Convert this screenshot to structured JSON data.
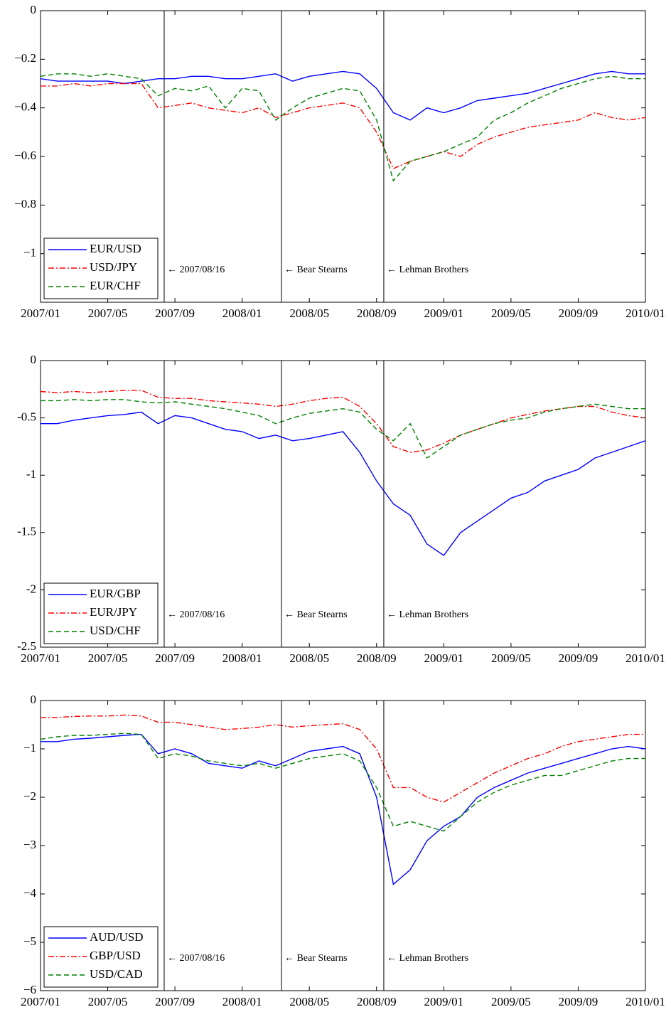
{
  "chart_data": [
    {
      "type": "line",
      "x": [
        "2007/01",
        "2007/02",
        "2007/03",
        "2007/04",
        "2007/05",
        "2007/06",
        "2007/07",
        "2007/08",
        "2007/09",
        "2007/10",
        "2007/11",
        "2007/12",
        "2008/01",
        "2008/02",
        "2008/03",
        "2008/04",
        "2008/05",
        "2008/06",
        "2008/07",
        "2008/08",
        "2008/09",
        "2008/10",
        "2008/11",
        "2008/12",
        "2009/01",
        "2009/02",
        "2009/03",
        "2009/04",
        "2009/05",
        "2009/06",
        "2009/07",
        "2009/08",
        "2009/09",
        "2009/10",
        "2009/11",
        "2009/12",
        "2010/01"
      ],
      "xticks": [
        "2007/01",
        "2007/05",
        "2007/09",
        "2008/01",
        "2008/05",
        "2008/09",
        "2009/01",
        "2009/05",
        "2009/09",
        "2010/01"
      ],
      "ylim": [
        -1.2,
        0
      ],
      "yticks": [
        {
          "value": -1,
          "label": "−1"
        },
        {
          "value": -0.8,
          "label": "−0.8"
        },
        {
          "value": -0.6,
          "label": "−0.6"
        },
        {
          "value": -0.4,
          "label": "−0.4"
        },
        {
          "value": -0.2,
          "label": "−0.2"
        },
        0
      ],
      "legend": "lower left",
      "annotations": [
        "← 2007/08/16",
        "← Bear Stearns",
        "← Lehman Brothers"
      ],
      "series": [
        {
          "name": "EUR/USD",
          "color": "#0000ff",
          "dash": "solid",
          "values": [
            -0.28,
            -0.29,
            -0.29,
            -0.29,
            -0.29,
            -0.3,
            -0.29,
            -0.28,
            -0.28,
            -0.27,
            -0.27,
            -0.28,
            -0.28,
            -0.27,
            -0.26,
            -0.29,
            -0.27,
            -0.26,
            -0.25,
            -0.26,
            -0.32,
            -0.42,
            -0.45,
            -0.4,
            -0.42,
            -0.4,
            -0.37,
            -0.36,
            -0.35,
            -0.34,
            -0.32,
            -0.3,
            -0.28,
            -0.26,
            -0.25,
            -0.26,
            -0.26
          ]
        },
        {
          "name": "USD/JPY",
          "color": "#ff0000",
          "dash": "dashdot",
          "values": [
            -0.31,
            -0.31,
            -0.3,
            -0.31,
            -0.3,
            -0.3,
            -0.3,
            -0.4,
            -0.39,
            -0.38,
            -0.4,
            -0.41,
            -0.42,
            -0.4,
            -0.44,
            -0.42,
            -0.4,
            -0.39,
            -0.38,
            -0.4,
            -0.5,
            -0.65,
            -0.62,
            -0.6,
            -0.58,
            -0.6,
            -0.55,
            -0.52,
            -0.5,
            -0.48,
            -0.47,
            -0.46,
            -0.45,
            -0.42,
            -0.44,
            -0.45,
            -0.44
          ]
        },
        {
          "name": "EUR/CHF",
          "color": "#008000",
          "dash": "dashed",
          "values": [
            -0.27,
            -0.26,
            -0.26,
            -0.27,
            -0.26,
            -0.27,
            -0.28,
            -0.35,
            -0.32,
            -0.33,
            -0.31,
            -0.4,
            -0.32,
            -0.33,
            -0.45,
            -0.4,
            -0.36,
            -0.34,
            -0.32,
            -0.33,
            -0.45,
            -0.7,
            -0.62,
            -0.6,
            -0.58,
            -0.55,
            -0.52,
            -0.45,
            -0.42,
            -0.38,
            -0.35,
            -0.32,
            -0.3,
            -0.28,
            -0.27,
            -0.28,
            -0.28
          ]
        }
      ]
    },
    {
      "type": "line",
      "x": [
        "2007/01",
        "2007/02",
        "2007/03",
        "2007/04",
        "2007/05",
        "2007/06",
        "2007/07",
        "2007/08",
        "2007/09",
        "2007/10",
        "2007/11",
        "2007/12",
        "2008/01",
        "2008/02",
        "2008/03",
        "2008/04",
        "2008/05",
        "2008/06",
        "2008/07",
        "2008/08",
        "2008/09",
        "2008/10",
        "2008/11",
        "2008/12",
        "2009/01",
        "2009/02",
        "2009/03",
        "2009/04",
        "2009/05",
        "2009/06",
        "2009/07",
        "2009/08",
        "2009/09",
        "2009/10",
        "2009/11",
        "2009/12",
        "2010/01"
      ],
      "xticks": [
        "2007/01",
        "2007/05",
        "2007/09",
        "2008/01",
        "2008/05",
        "2008/09",
        "2009/01",
        "2009/05",
        "2009/09",
        "2010/01"
      ],
      "ylim": [
        -2.5,
        0
      ],
      "yticks": [
        -2.5,
        -2,
        -1.5,
        -1,
        -0.5,
        0
      ],
      "legend": "lower left",
      "annotations": [
        "← 2007/08/16",
        "← Bear Stearns",
        "← Lehman Brothers"
      ],
      "series": [
        {
          "name": "EUR/GBP",
          "color": "#0000ff",
          "dash": "solid",
          "values": [
            -0.55,
            -0.55,
            -0.52,
            -0.5,
            -0.48,
            -0.47,
            -0.45,
            -0.55,
            -0.48,
            -0.5,
            -0.55,
            -0.6,
            -0.62,
            -0.68,
            -0.65,
            -0.7,
            -0.68,
            -0.65,
            -0.62,
            -0.8,
            -1.05,
            -1.25,
            -1.35,
            -1.6,
            -1.7,
            -1.5,
            -1.4,
            -1.3,
            -1.2,
            -1.15,
            -1.05,
            -1.0,
            -0.95,
            -0.85,
            -0.8,
            -0.75,
            -0.7
          ]
        },
        {
          "name": "EUR/JPY",
          "color": "#ff0000",
          "dash": "dashdot",
          "values": [
            -0.27,
            -0.28,
            -0.27,
            -0.28,
            -0.27,
            -0.26,
            -0.26,
            -0.32,
            -0.33,
            -0.33,
            -0.35,
            -0.36,
            -0.37,
            -0.38,
            -0.4,
            -0.38,
            -0.35,
            -0.33,
            -0.32,
            -0.4,
            -0.55,
            -0.75,
            -0.8,
            -0.78,
            -0.72,
            -0.65,
            -0.6,
            -0.55,
            -0.5,
            -0.47,
            -0.44,
            -0.42,
            -0.4,
            -0.4,
            -0.45,
            -0.48,
            -0.5
          ]
        },
        {
          "name": "USD/CHF",
          "color": "#008000",
          "dash": "dashed",
          "values": [
            -0.35,
            -0.35,
            -0.34,
            -0.35,
            -0.34,
            -0.34,
            -0.36,
            -0.37,
            -0.36,
            -0.38,
            -0.4,
            -0.42,
            -0.45,
            -0.48,
            -0.55,
            -0.5,
            -0.46,
            -0.44,
            -0.42,
            -0.45,
            -0.6,
            -0.7,
            -0.55,
            -0.85,
            -0.75,
            -0.65,
            -0.6,
            -0.55,
            -0.52,
            -0.5,
            -0.45,
            -0.42,
            -0.4,
            -0.38,
            -0.4,
            -0.42,
            -0.42
          ]
        }
      ]
    },
    {
      "type": "line",
      "x": [
        "2007/01",
        "2007/02",
        "2007/03",
        "2007/04",
        "2007/05",
        "2007/06",
        "2007/07",
        "2007/08",
        "2007/09",
        "2007/10",
        "2007/11",
        "2007/12",
        "2008/01",
        "2008/02",
        "2008/03",
        "2008/04",
        "2008/05",
        "2008/06",
        "2008/07",
        "2008/08",
        "2008/09",
        "2008/10",
        "2008/11",
        "2008/12",
        "2009/01",
        "2009/02",
        "2009/03",
        "2009/04",
        "2009/05",
        "2009/06",
        "2009/07",
        "2009/08",
        "2009/09",
        "2009/10",
        "2009/11",
        "2009/12",
        "2010/01"
      ],
      "xticks": [
        "2007/01",
        "2007/05",
        "2007/09",
        "2008/01",
        "2008/05",
        "2008/09",
        "2009/01",
        "2009/05",
        "2009/09",
        "2010/01"
      ],
      "ylim": [
        -6,
        0
      ],
      "yticks": [
        {
          "value": -6,
          "label": "−6"
        },
        {
          "value": -5,
          "label": "−5"
        },
        {
          "value": -4,
          "label": "−4"
        },
        {
          "value": -3,
          "label": "−3"
        },
        {
          "value": -2,
          "label": "−2"
        },
        {
          "value": -1,
          "label": "−1"
        },
        0
      ],
      "legend": "lower left",
      "annotations": [
        "← 2007/08/16",
        "← Bear Stearns",
        "← Lehman Brothers"
      ],
      "series": [
        {
          "name": "AUD/USD",
          "color": "#0000ff",
          "dash": "solid",
          "values": [
            -0.85,
            -0.85,
            -0.8,
            -0.78,
            -0.75,
            -0.72,
            -0.7,
            -1.1,
            -1.0,
            -1.1,
            -1.3,
            -1.35,
            -1.4,
            -1.25,
            -1.35,
            -1.2,
            -1.05,
            -1.0,
            -0.95,
            -1.1,
            -2.0,
            -3.8,
            -3.5,
            -2.9,
            -2.6,
            -2.4,
            -2.0,
            -1.8,
            -1.65,
            -1.5,
            -1.4,
            -1.3,
            -1.2,
            -1.1,
            -1.0,
            -0.95,
            -1.0
          ]
        },
        {
          "name": "GBP/USD",
          "color": "#ff0000",
          "dash": "dashdot",
          "values": [
            -0.35,
            -0.35,
            -0.33,
            -0.32,
            -0.32,
            -0.3,
            -0.32,
            -0.45,
            -0.45,
            -0.5,
            -0.55,
            -0.6,
            -0.58,
            -0.55,
            -0.5,
            -0.55,
            -0.52,
            -0.5,
            -0.48,
            -0.6,
            -1.0,
            -1.8,
            -1.8,
            -2.0,
            -2.1,
            -1.9,
            -1.7,
            -1.5,
            -1.35,
            -1.2,
            -1.1,
            -0.95,
            -0.85,
            -0.8,
            -0.75,
            -0.7,
            -0.7
          ]
        },
        {
          "name": "USD/CAD",
          "color": "#008000",
          "dash": "dashed",
          "values": [
            -0.8,
            -0.75,
            -0.72,
            -0.72,
            -0.7,
            -0.68,
            -0.7,
            -1.2,
            -1.1,
            -1.15,
            -1.25,
            -1.3,
            -1.35,
            -1.3,
            -1.4,
            -1.3,
            -1.2,
            -1.15,
            -1.1,
            -1.25,
            -1.8,
            -2.6,
            -2.5,
            -2.6,
            -2.7,
            -2.4,
            -2.1,
            -1.9,
            -1.75,
            -1.65,
            -1.55,
            -1.55,
            -1.45,
            -1.35,
            -1.25,
            -1.2,
            -1.2
          ]
        }
      ]
    }
  ]
}
